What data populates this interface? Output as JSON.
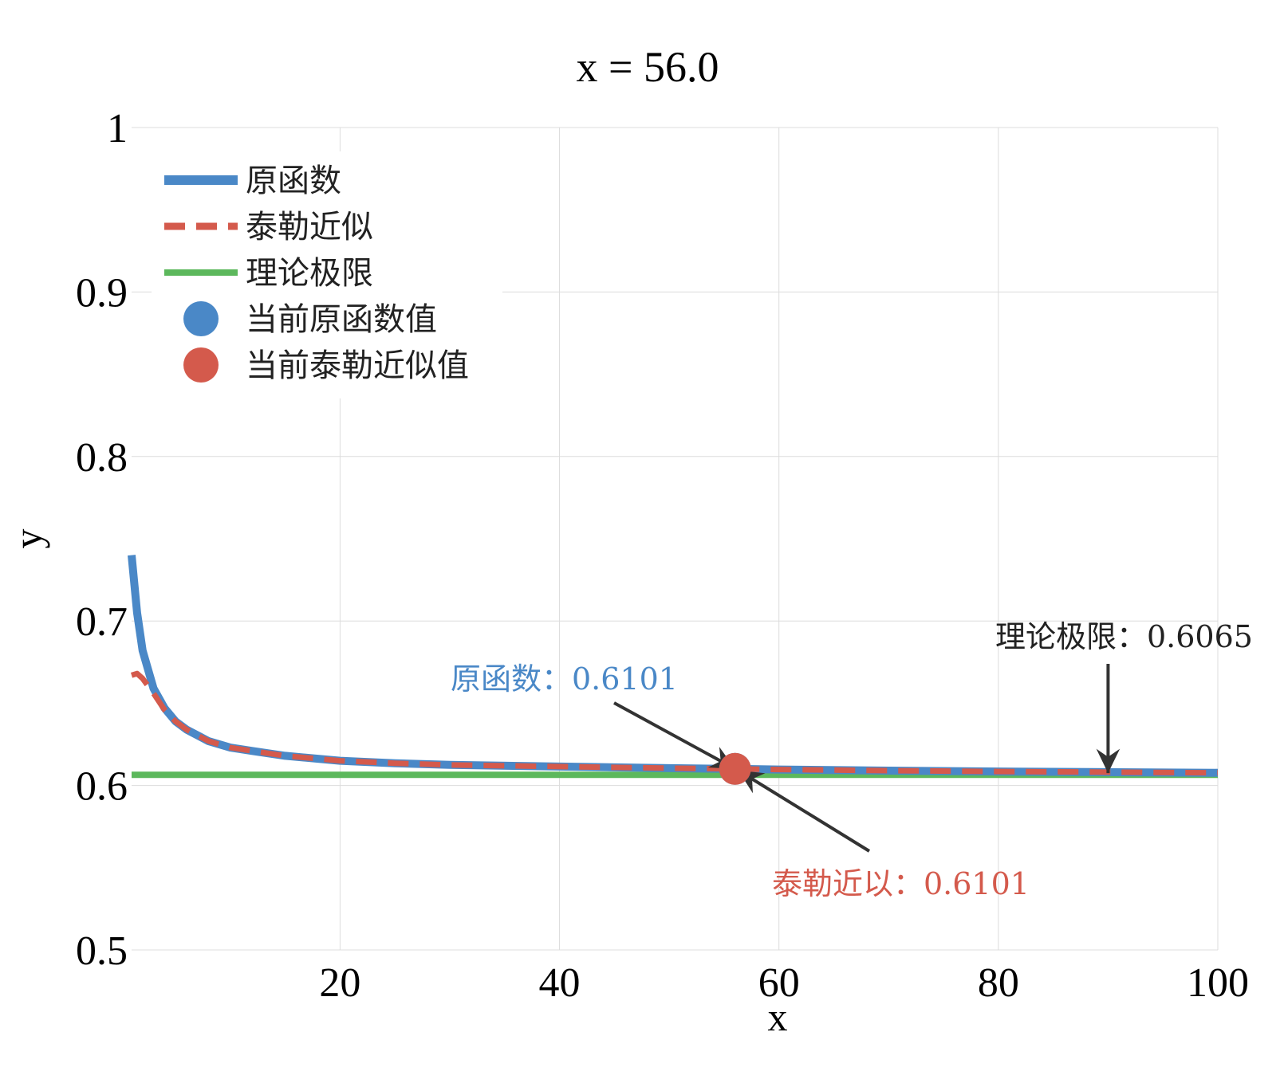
{
  "chart_data": {
    "type": "line",
    "title": "x = 56.0",
    "xlabel": "x",
    "ylabel": "y",
    "xlim": [
      1,
      100
    ],
    "ylim": [
      0.5,
      1.0
    ],
    "x_ticks": [
      20,
      40,
      60,
      80,
      100
    ],
    "y_ticks": [
      0.5,
      0.6,
      0.7,
      0.8,
      0.9,
      1
    ],
    "y_tick_labels": [
      "0.5",
      "0.6",
      "0.7",
      "0.8",
      "0.9",
      "1"
    ],
    "x_tick_labels": [
      "20",
      "40",
      "60",
      "80",
      "100"
    ],
    "grid": true,
    "legend_position": "top-left",
    "series": [
      {
        "name": "原函数",
        "style": "solid",
        "color": "#4a88c7",
        "x": [
          1,
          1.5,
          2,
          3,
          4,
          5,
          6,
          8,
          10,
          12,
          15,
          20,
          25,
          30,
          40,
          50,
          56,
          60,
          70,
          80,
          90,
          100
        ],
        "y": [
          0.74,
          0.705,
          0.682,
          0.659,
          0.647,
          0.639,
          0.634,
          0.627,
          0.623,
          0.621,
          0.618,
          0.615,
          0.6135,
          0.6125,
          0.6115,
          0.6105,
          0.6101,
          0.6097,
          0.609,
          0.6085,
          0.6081,
          0.6077
        ]
      },
      {
        "name": "泰勒近似",
        "style": "dashed",
        "color": "#d45a4c",
        "x": [
          1,
          1.5,
          2,
          3,
          4,
          5,
          6,
          8,
          10,
          12,
          15,
          20,
          25,
          30,
          40,
          50,
          56,
          60,
          70,
          80,
          90,
          100
        ],
        "y": [
          0.667,
          0.668,
          0.665,
          0.656,
          0.646,
          0.639,
          0.634,
          0.627,
          0.623,
          0.621,
          0.618,
          0.615,
          0.6135,
          0.6125,
          0.6115,
          0.6105,
          0.6101,
          0.6097,
          0.609,
          0.6085,
          0.6081,
          0.6077
        ]
      },
      {
        "name": "理论极限",
        "style": "solid",
        "color": "#5cb85c",
        "x": [
          1,
          100
        ],
        "y": [
          0.6065,
          0.6065
        ]
      }
    ],
    "points": [
      {
        "name": "当前原函数值",
        "color": "#4a88c7",
        "x": 56,
        "y": 0.6101
      },
      {
        "name": "当前泰勒近似值",
        "color": "#d45a4c",
        "x": 56,
        "y": 0.6101
      }
    ],
    "annotations": [
      {
        "text": "原函数：0.6101",
        "color": "#4a88c7",
        "x": 56,
        "y": 0.6101
      },
      {
        "text": "泰勒近以：0.6101",
        "color": "#d45a4c",
        "x": 56,
        "y": 0.6101
      },
      {
        "text": "理论极限：0.6065",
        "color": "#222222",
        "x": 90,
        "y": 0.6065
      }
    ],
    "legend": [
      {
        "label": "原函数",
        "kind": "line",
        "color": "#4a88c7"
      },
      {
        "label": "泰勒近似",
        "kind": "dash",
        "color": "#d45a4c"
      },
      {
        "label": "理论极限",
        "kind": "line",
        "color": "#5cb85c"
      },
      {
        "label": "当前原函数值",
        "kind": "dot",
        "color": "#4a88c7"
      },
      {
        "label": "当前泰勒近似值",
        "kind": "dot",
        "color": "#d45a4c"
      }
    ]
  }
}
